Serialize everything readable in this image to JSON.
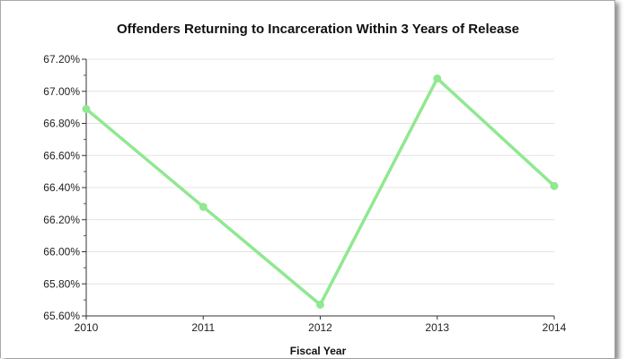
{
  "chart_data": {
    "type": "line",
    "title": "Offenders Returning to Incarceration Within 3 Years of Release",
    "xlabel": "Fiscal Year",
    "ylabel": "",
    "x": [
      "2010",
      "2011",
      "2012",
      "2013",
      "2014"
    ],
    "ylim": [
      65.6,
      67.2
    ],
    "yticks": [
      65.6,
      65.8,
      66.0,
      66.2,
      66.4,
      66.6,
      66.8,
      67.0,
      67.2
    ],
    "ytick_labels": [
      "65.60%",
      "65.80%",
      "66.00%",
      "66.20%",
      "66.40%",
      "66.60%",
      "66.80%",
      "67.00%",
      "67.20%"
    ],
    "grid": true,
    "legend": "none",
    "series": [
      {
        "values": [
          66.89,
          66.28,
          65.67,
          67.08,
          66.41
        ],
        "color": "#90e890"
      }
    ]
  }
}
